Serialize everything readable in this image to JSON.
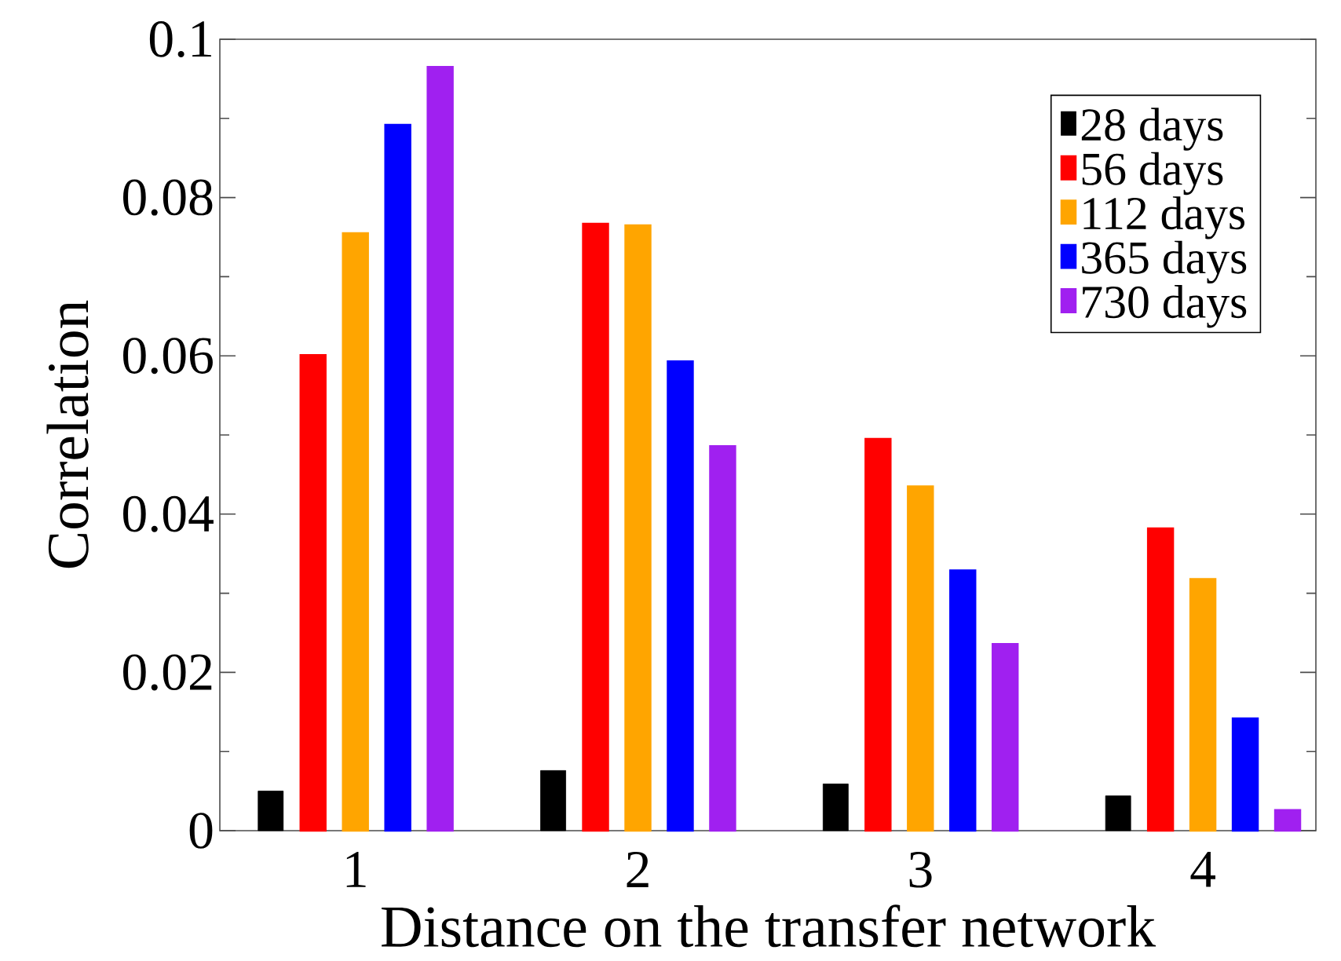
{
  "chart_data": {
    "type": "bar",
    "xlabel": "Distance on the transfer network",
    "ylabel": "Correlation",
    "categories": [
      "1",
      "2",
      "3",
      "4"
    ],
    "series": [
      {
        "name": "28 days",
        "color": "#000000",
        "values": [
          0.005,
          0.0076,
          0.0059,
          0.0044
        ]
      },
      {
        "name": "56 days",
        "color": "#ff0000",
        "values": [
          0.0601,
          0.0767,
          0.0495,
          0.0382
        ]
      },
      {
        "name": "112 days",
        "color": "#ffa500",
        "values": [
          0.0755,
          0.0765,
          0.0435,
          0.0318
        ]
      },
      {
        "name": "365 days",
        "color": "#0000ff",
        "values": [
          0.0892,
          0.0593,
          0.0329,
          0.0142
        ]
      },
      {
        "name": "730 days",
        "color": "#a020f0",
        "values": [
          0.0965,
          0.0486,
          0.0236,
          0.0026
        ]
      }
    ],
    "ylim": [
      0,
      0.1
    ],
    "yticks": [
      0,
      0.02,
      0.04,
      0.06,
      0.08,
      0.1
    ],
    "grid": false,
    "legend": "top right"
  }
}
